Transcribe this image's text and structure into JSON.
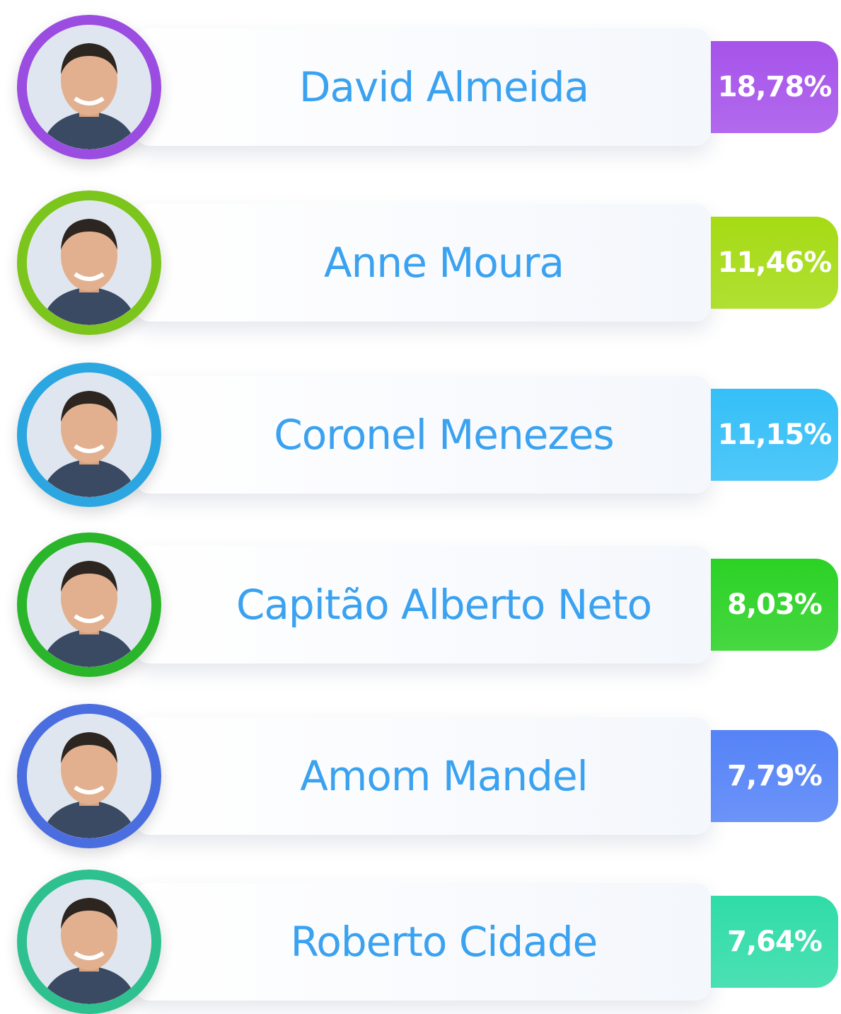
{
  "candidates": [
    {
      "name": "David Almeida",
      "percent": "18,78%",
      "color": "#a653ea",
      "ring": "#9a4de0"
    },
    {
      "name": "Anne Moura",
      "percent": "11,46%",
      "color": "#a5db14",
      "ring": "#7cc51c"
    },
    {
      "name": "Coronel Menezes",
      "percent": "11,15%",
      "color": "#35bff8",
      "ring": "#2ba6e0"
    },
    {
      "name": "Capitão Alberto Neto",
      "percent": "8,03%",
      "color": "#2bd225",
      "ring": "#2ab52a"
    },
    {
      "name": "Amom Mandel",
      "percent": "7,79%",
      "color": "#5583f7",
      "ring": "#4a6ee0"
    },
    {
      "name": "Roberto Cidade",
      "percent": "7,64%",
      "color": "#30dca8",
      "ring": "#2fc08f"
    }
  ]
}
